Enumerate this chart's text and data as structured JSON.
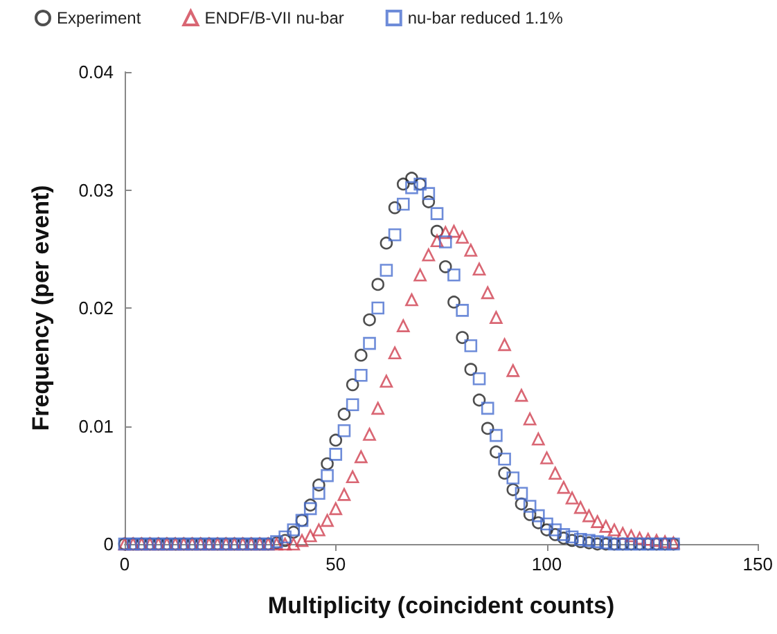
{
  "chart_data": {
    "type": "scatter",
    "xlabel": "Multiplicity (coincident counts)",
    "ylabel": "Frequency (per event)",
    "x": [
      0,
      2,
      4,
      6,
      8,
      10,
      12,
      14,
      16,
      18,
      20,
      22,
      24,
      26,
      28,
      30,
      32,
      34,
      36,
      38,
      40,
      42,
      44,
      46,
      48,
      50,
      52,
      54,
      56,
      58,
      60,
      62,
      64,
      66,
      68,
      70,
      72,
      74,
      76,
      78,
      80,
      82,
      84,
      86,
      88,
      90,
      92,
      94,
      96,
      98,
      100,
      102,
      104,
      106,
      108,
      110,
      112,
      114,
      116,
      118,
      120,
      122,
      124,
      126,
      128,
      130
    ],
    "series": [
      {
        "name": "Experiment",
        "color": "#222222",
        "marker": "circle",
        "values": [
          0,
          0,
          0,
          0,
          0,
          0,
          0,
          0,
          0,
          0,
          0,
          0,
          0,
          0,
          0,
          0,
          0,
          0,
          0.0001,
          0.0003,
          0.001,
          0.002,
          0.0033,
          0.005,
          0.0068,
          0.0088,
          0.011,
          0.0135,
          0.016,
          0.019,
          0.022,
          0.0255,
          0.0285,
          0.0305,
          0.031,
          0.0305,
          0.029,
          0.0265,
          0.0235,
          0.0205,
          0.0175,
          0.0148,
          0.0122,
          0.0098,
          0.0078,
          0.006,
          0.0046,
          0.0034,
          0.0025,
          0.0018,
          0.0012,
          0.0008,
          0.0005,
          0.0003,
          0.0002,
          0.0001,
          0,
          0,
          0,
          0,
          0,
          0,
          0,
          0,
          0,
          0
        ]
      },
      {
        "name": "ENDF/B-VII nu-bar",
        "color": "#d04050",
        "marker": "triangle",
        "values": [
          0,
          0,
          0,
          0,
          0,
          0,
          0,
          0,
          0,
          0,
          0,
          0,
          0,
          0,
          0,
          0,
          0,
          0,
          0,
          0,
          0,
          0.0003,
          0.0007,
          0.0012,
          0.002,
          0.003,
          0.0042,
          0.0057,
          0.0074,
          0.0093,
          0.0115,
          0.0138,
          0.0162,
          0.0185,
          0.0207,
          0.0228,
          0.0245,
          0.0257,
          0.0264,
          0.0265,
          0.026,
          0.0249,
          0.0233,
          0.0213,
          0.0192,
          0.0169,
          0.0147,
          0.0126,
          0.0106,
          0.0089,
          0.0073,
          0.006,
          0.0048,
          0.0039,
          0.0031,
          0.0024,
          0.0019,
          0.0015,
          0.0012,
          0.0009,
          0.0007,
          0.0005,
          0.0004,
          0.0003,
          0.0002,
          0.0001
        ]
      },
      {
        "name": "nu-bar reduced 1.1%",
        "color": "#4a6fd0",
        "marker": "square",
        "values": [
          0,
          0,
          0,
          0,
          0,
          0,
          0,
          0,
          0,
          0,
          0,
          0,
          0,
          0,
          0,
          0,
          0,
          0,
          0.0002,
          0.0006,
          0.0012,
          0.002,
          0.003,
          0.0043,
          0.0058,
          0.0076,
          0.0096,
          0.0118,
          0.0143,
          0.017,
          0.02,
          0.0232,
          0.0262,
          0.0288,
          0.0302,
          0.0305,
          0.0297,
          0.028,
          0.0256,
          0.0228,
          0.0198,
          0.0168,
          0.014,
          0.0115,
          0.0092,
          0.0072,
          0.0056,
          0.0043,
          0.0032,
          0.0024,
          0.0017,
          0.0012,
          0.0008,
          0.0006,
          0.0004,
          0.0003,
          0.0002,
          0.0001,
          0,
          0,
          0,
          0,
          0,
          0,
          0,
          0
        ]
      }
    ],
    "xlim": [
      0,
      150
    ],
    "xticks": [
      0,
      50,
      100,
      150
    ],
    "ylim": [
      0,
      0.04
    ],
    "yticks": [
      0,
      0.01,
      0.02,
      0.03,
      0.04
    ],
    "grid": false,
    "legend": "top"
  }
}
